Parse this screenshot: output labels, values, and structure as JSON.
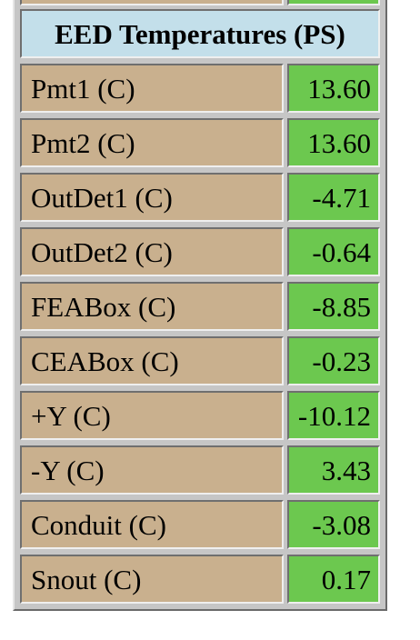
{
  "table": {
    "title": "EED Temperatures (PS)",
    "rows": [
      {
        "label": "Pmt1 (C)",
        "value": "13.60"
      },
      {
        "label": "Pmt2 (C)",
        "value": "13.60"
      },
      {
        "label": "OutDet1 (C)",
        "value": "-4.71"
      },
      {
        "label": "OutDet2 (C)",
        "value": "-0.64"
      },
      {
        "label": "FEABox (C)",
        "value": "-8.85"
      },
      {
        "label": "CEABox (C)",
        "value": "-0.23"
      },
      {
        "label": "+Y (C)",
        "value": "-10.12"
      },
      {
        "label": "-Y (C)",
        "value": "3.43"
      },
      {
        "label": "Conduit (C)",
        "value": "-3.08"
      },
      {
        "label": "Snout (C)",
        "value": "0.17"
      }
    ]
  },
  "colors": {
    "header_bg": "#c3dfea",
    "label_bg": "#c9b08e",
    "value_bg": "#6cc84f"
  }
}
